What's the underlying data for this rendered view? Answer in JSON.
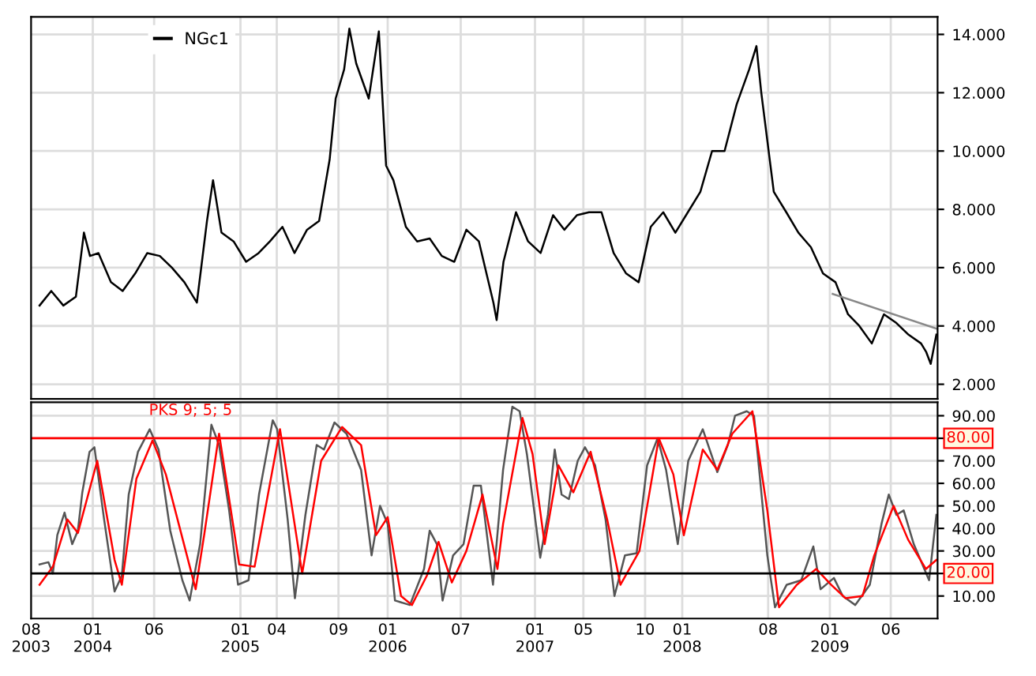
{
  "chart_data": [
    {
      "type": "line",
      "xlim": [
        "2003-08-01",
        "2009-09-25"
      ],
      "ylim": [
        1.5,
        14.6
      ],
      "yticks": [
        {
          "value": 2,
          "label": "2.000"
        },
        {
          "value": 4,
          "label": "4.000"
        },
        {
          "value": 6,
          "label": "6.000"
        },
        {
          "value": 8,
          "label": "8.000"
        },
        {
          "value": 10,
          "label": "10.000"
        },
        {
          "value": 12,
          "label": "12.000"
        },
        {
          "value": 14,
          "label": "14.000"
        }
      ],
      "xticks": [
        {
          "value": "2004-01-01",
          "label": null
        },
        {
          "value": "2004-06-01",
          "label": null
        },
        {
          "value": "2005-01-01",
          "label": null
        },
        {
          "value": "2005-04-01",
          "label": null
        },
        {
          "value": "2005-09-01",
          "label": null
        },
        {
          "value": "2006-01-01",
          "label": null
        },
        {
          "value": "2006-07-01",
          "label": null
        },
        {
          "value": "2007-01-01",
          "label": null
        },
        {
          "value": "2007-05-01",
          "label": null
        },
        {
          "value": "2007-10-01",
          "label": null
        },
        {
          "value": "2008-01-01",
          "label": null
        },
        {
          "value": "2008-08-01",
          "label": null
        },
        {
          "value": "2009-01-01",
          "label": null
        },
        {
          "value": "2009-06-01",
          "label": null
        }
      ],
      "tick_labels": "y",
      "grid": true,
      "legend": "top left",
      "series": [
        {
          "name": "NGc1",
          "color": "#000000",
          "x": [
            "2003-08-22",
            "2003-09-20",
            "2003-10-20",
            "2003-11-20",
            "2003-12-10",
            "2003-12-25",
            "2004-01-15",
            "2004-02-15",
            "2004-03-15",
            "2004-04-15",
            "2004-05-15",
            "2004-06-15",
            "2004-07-15",
            "2004-08-15",
            "2004-09-15",
            "2004-10-10",
            "2004-10-25",
            "2004-11-15",
            "2004-12-15",
            "2005-01-15",
            "2005-02-15",
            "2005-03-15",
            "2005-04-15",
            "2005-05-15",
            "2005-06-15",
            "2005-07-15",
            "2005-08-10",
            "2005-08-25",
            "2005-09-15",
            "2005-09-28",
            "2005-10-15",
            "2005-11-15",
            "2005-12-10",
            "2005-12-28",
            "2006-01-15",
            "2006-02-15",
            "2006-03-15",
            "2006-04-15",
            "2006-05-15",
            "2006-06-15",
            "2006-07-15",
            "2006-08-15",
            "2006-09-20",
            "2006-09-28",
            "2006-10-15",
            "2006-11-15",
            "2006-12-15",
            "2007-01-15",
            "2007-02-15",
            "2007-03-15",
            "2007-04-15",
            "2007-05-15",
            "2007-06-15",
            "2007-07-15",
            "2007-08-15",
            "2007-09-15",
            "2007-10-15",
            "2007-11-15",
            "2007-12-15",
            "2008-01-15",
            "2008-02-15",
            "2008-03-15",
            "2008-04-15",
            "2008-05-15",
            "2008-06-15",
            "2008-07-03",
            "2008-07-15",
            "2008-08-15",
            "2008-09-15",
            "2008-10-15",
            "2008-11-15",
            "2008-12-15",
            "2009-01-15",
            "2009-02-15",
            "2009-03-15",
            "2009-04-15",
            "2009-05-15",
            "2009-06-15",
            "2009-07-15",
            "2009-08-15",
            "2009-08-28",
            "2009-09-08",
            "2009-09-22"
          ],
          "values": [
            4.7,
            5.2,
            4.7,
            5.0,
            7.2,
            6.4,
            6.5,
            5.5,
            5.2,
            5.8,
            6.5,
            6.4,
            6.0,
            5.5,
            4.8,
            7.6,
            9.0,
            7.2,
            6.9,
            6.2,
            6.5,
            6.9,
            7.4,
            6.5,
            7.3,
            7.6,
            9.7,
            11.8,
            12.8,
            14.2,
            13.0,
            11.8,
            14.1,
            9.5,
            9.0,
            7.4,
            6.9,
            7.0,
            6.4,
            6.2,
            7.3,
            6.9,
            4.8,
            4.2,
            6.2,
            7.9,
            6.9,
            6.5,
            7.8,
            7.3,
            7.8,
            7.9,
            7.9,
            6.5,
            5.8,
            5.5,
            7.4,
            7.9,
            7.2,
            7.9,
            8.6,
            10.0,
            10.0,
            11.6,
            12.8,
            13.6,
            12.0,
            8.6,
            7.9,
            7.2,
            6.7,
            5.8,
            5.5,
            4.4,
            4.0,
            3.4,
            4.4,
            4.1,
            3.7,
            3.4,
            3.1,
            2.7,
            3.7
          ]
        },
        {
          "color": "#888888",
          "x": [
            "2009-01-08",
            "2009-09-24"
          ],
          "values": [
            5.1,
            3.9
          ]
        }
      ]
    },
    {
      "type": "line",
      "title": "PKS 9; 5; 5",
      "xlim": [
        "2003-08-01",
        "2009-09-25"
      ],
      "ylim": [
        0,
        96
      ],
      "yticks": [
        {
          "value": 10,
          "label": "10.00"
        },
        {
          "value": 20,
          "label": null
        },
        {
          "value": 30,
          "label": "30.00"
        },
        {
          "value": 40,
          "label": "40.00"
        },
        {
          "value": 50,
          "label": "50.00"
        },
        {
          "value": 60,
          "label": "60.00"
        },
        {
          "value": 70,
          "label": "70.00"
        },
        {
          "value": 80,
          "label": null
        },
        {
          "value": 90,
          "label": "90.00"
        }
      ],
      "xticks": [
        {
          "value": "2003-08-01",
          "label": "08\n2003"
        },
        {
          "value": "2004-01-01",
          "label": "01\n2004"
        },
        {
          "value": "2004-06-01",
          "label": "06"
        },
        {
          "value": "2005-01-01",
          "label": "01\n2005"
        },
        {
          "value": "2005-04-01",
          "label": "04"
        },
        {
          "value": "2005-09-01",
          "label": "09"
        },
        {
          "value": "2006-01-01",
          "label": "01\n2006"
        },
        {
          "value": "2006-07-01",
          "label": "07"
        },
        {
          "value": "2007-01-01",
          "label": "01\n2007"
        },
        {
          "value": "2007-05-01",
          "label": "05"
        },
        {
          "value": "2007-10-01",
          "label": "10"
        },
        {
          "value": "2008-01-01",
          "label": "01\n2008"
        },
        {
          "value": "2008-08-01",
          "label": "08"
        },
        {
          "value": "2009-01-01",
          "label": "01\n2009"
        },
        {
          "value": "2009-06-01",
          "label": "06"
        }
      ],
      "grid": true,
      "ref_lines": [
        {
          "axis": "y",
          "value": 80,
          "label": "80.00",
          "color": "#ff0000"
        },
        {
          "axis": "y",
          "value": 20,
          "label": "20.00",
          "color": "#000000"
        }
      ],
      "series": [
        {
          "color": "#555555",
          "x": [
            "2003-08-22",
            "2003-09-13",
            "2003-09-24",
            "2003-10-05",
            "2003-10-23",
            "2003-11-11",
            "2003-11-25",
            "2003-12-06",
            "2003-12-24",
            "2004-01-05",
            "2004-01-29",
            "2004-02-24",
            "2004-03-13",
            "2004-03-30",
            "2004-04-22",
            "2004-05-21",
            "2004-06-12",
            "2004-07-11",
            "2004-08-10",
            "2004-08-28",
            "2004-09-23",
            "2004-10-21",
            "2004-11-09",
            "2004-12-04",
            "2004-12-26",
            "2005-01-21",
            "2005-02-16",
            "2005-03-22",
            "2005-04-02",
            "2005-04-28",
            "2005-05-16",
            "2005-06-11",
            "2005-07-09",
            "2005-07-27",
            "2005-08-22",
            "2005-09-21",
            "2005-10-27",
            "2005-11-22",
            "2005-12-13",
            "2006-01-01",
            "2006-01-19",
            "2006-02-25",
            "2006-04-01",
            "2006-04-15",
            "2006-05-03",
            "2006-05-17",
            "2006-06-12",
            "2006-07-08",
            "2006-08-02",
            "2006-08-20",
            "2006-09-19",
            "2006-10-14",
            "2006-11-06",
            "2006-11-24",
            "2006-12-12",
            "2007-01-14",
            "2007-02-02",
            "2007-02-19",
            "2007-03-08",
            "2007-03-26",
            "2007-04-17",
            "2007-05-05",
            "2007-05-30",
            "2007-06-25",
            "2007-07-17",
            "2007-08-12",
            "2007-09-10",
            "2007-10-06",
            "2007-11-01",
            "2007-11-22",
            "2007-12-21",
            "2008-01-16",
            "2008-02-21",
            "2008-03-28",
            "2008-04-23",
            "2008-05-11",
            "2008-06-09",
            "2008-06-27",
            "2008-07-30",
            "2008-08-18",
            "2008-09-16",
            "2008-10-22",
            "2008-11-21",
            "2008-12-09",
            "2009-01-11",
            "2009-02-02",
            "2009-03-05",
            "2009-04-10",
            "2009-05-09",
            "2009-05-27",
            "2009-06-15",
            "2009-07-03",
            "2009-07-28",
            "2009-09-04",
            "2009-09-22"
          ],
          "values": [
            24,
            25,
            20,
            37,
            47,
            33,
            39,
            56,
            74,
            76,
            44,
            12,
            19,
            55,
            74,
            84,
            75,
            39,
            17,
            8,
            33,
            86,
            77,
            48,
            15,
            17,
            55,
            88,
            84,
            44,
            9,
            46,
            77,
            75,
            87,
            82,
            66,
            28,
            50,
            42,
            8,
            6,
            22,
            39,
            33,
            8,
            28,
            33,
            59,
            59,
            15,
            66,
            94,
            92,
            73,
            27,
            46,
            75,
            55,
            53,
            70,
            76,
            68,
            44,
            10,
            28,
            29,
            68,
            80,
            66,
            33,
            70,
            84,
            65,
            77,
            90,
            92,
            90,
            28,
            5,
            15,
            17,
            32,
            13,
            18,
            10,
            6,
            15,
            42,
            55,
            46,
            48,
            33,
            17,
            46
          ]
        },
        {
          "color": "#ff0000",
          "x": [
            "2003-08-22",
            "2003-09-24",
            "2003-10-30",
            "2003-11-25",
            "2004-01-12",
            "2004-02-24",
            "2004-03-13",
            "2004-04-18",
            "2004-05-28",
            "2004-06-30",
            "2004-09-12",
            "2004-10-03",
            "2004-11-09",
            "2004-12-29",
            "2005-02-05",
            "2005-04-09",
            "2005-06-03",
            "2005-07-20",
            "2005-09-10",
            "2005-10-27",
            "2005-12-03",
            "2006-01-01",
            "2006-02-03",
            "2006-03-02",
            "2006-04-08",
            "2006-05-07",
            "2006-06-09",
            "2006-07-15",
            "2006-08-24",
            "2006-09-30",
            "2006-10-14",
            "2006-12-01",
            "2006-12-26",
            "2007-01-25",
            "2007-02-28",
            "2007-04-06",
            "2007-05-19",
            "2007-06-29",
            "2007-08-01",
            "2007-09-17",
            "2007-11-04",
            "2007-12-10",
            "2008-01-05",
            "2008-02-21",
            "2008-03-28",
            "2008-05-04",
            "2008-06-23",
            "2008-07-30",
            "2008-08-28",
            "2008-10-11",
            "2008-11-28",
            "2009-01-04",
            "2009-02-09",
            "2009-03-23",
            "2009-04-21",
            "2009-06-08",
            "2009-07-14",
            "2009-08-27",
            "2009-09-22"
          ],
          "values": [
            15,
            23,
            44,
            38,
            70,
            26,
            15,
            62,
            79,
            64,
            13,
            37,
            82,
            24,
            23,
            84,
            20,
            70,
            85,
            77,
            37,
            45,
            10,
            6,
            19,
            34,
            16,
            30,
            55,
            22,
            42,
            89,
            73,
            33,
            68,
            56,
            74,
            44,
            15,
            30,
            80,
            64,
            37,
            75,
            66,
            82,
            92,
            48,
            5,
            15,
            22,
            15,
            9,
            10,
            28,
            50,
            35,
            22,
            26
          ]
        }
      ]
    }
  ]
}
